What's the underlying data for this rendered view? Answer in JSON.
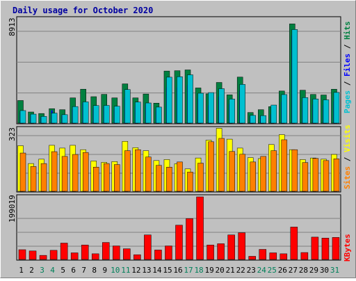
{
  "chart_data": [
    {
      "type": "bar",
      "title": "Daily usage for October 2020",
      "y_max_label": "8913",
      "ylim": [
        0,
        8913
      ],
      "legend": [
        {
          "name": "Pages",
          "color": "#00c0d0"
        },
        {
          "name": "Files",
          "color": "#0000ff"
        },
        {
          "name": "Hits",
          "color": "#008040"
        }
      ],
      "x": [
        "1",
        "2",
        "3",
        "4",
        "5",
        "6",
        "7",
        "8",
        "9",
        "10",
        "11",
        "12",
        "13",
        "14",
        "15",
        "16",
        "17",
        "18",
        "19",
        "20",
        "21",
        "22",
        "23",
        "24",
        "25",
        "26",
        "27",
        "28",
        "29",
        "30",
        "31"
      ],
      "weekend_days": [
        "3",
        "4",
        "10",
        "11",
        "17",
        "18",
        "24",
        "25",
        "31"
      ],
      "series": [
        {
          "name": "Hits",
          "color": "#008040",
          "values": [
            1959,
            964,
            832,
            1252,
            1164,
            2186,
            2938,
            2289,
            2491,
            2185,
            3399,
            2186,
            2521,
            1729,
            4509,
            4539,
            4607,
            3046,
            2537,
            3522,
            2448,
            3986,
            919,
            1164,
            1427,
            2780,
            8589,
            2849,
            2483,
            2436,
            2937
          ]
        },
        {
          "name": "Files",
          "color": "#0000ff",
          "values": [
            920,
            660,
            520,
            1100,
            680,
            1200,
            1750,
            1300,
            1450,
            1200,
            2250,
            1450,
            1600,
            1100,
            3100,
            3100,
            3300,
            2100,
            1550,
            2300,
            1650,
            2800,
            560,
            600,
            760,
            1850,
            7600,
            1900,
            1600,
            1550,
            1900
          ]
        },
        {
          "name": "Pages",
          "color": "#00c0d0",
          "values": [
            1087,
            779,
            582,
            866,
            732,
            1435,
            1841,
            1521,
            1533,
            1468,
            2907,
            1826,
            1746,
            1390,
            3980,
            4020,
            4183,
            2590,
            2644,
            2983,
            2085,
            3351,
            669,
            652,
            1564,
            2472,
            8104,
            2213,
            2093,
            2018,
            2657
          ]
        }
      ]
    },
    {
      "type": "bar",
      "y_max_label": "323",
      "ylim": [
        0,
        323
      ],
      "legend": [
        {
          "name": "Sites",
          "color": "#ff8000"
        },
        {
          "name": "Visits",
          "color": "#ffff00"
        }
      ],
      "x": [
        "1",
        "2",
        "3",
        "4",
        "5",
        "6",
        "7",
        "8",
        "9",
        "10",
        "11",
        "12",
        "13",
        "14",
        "15",
        "16",
        "17",
        "18",
        "19",
        "20",
        "21",
        "22",
        "23",
        "24",
        "25",
        "26",
        "27",
        "28",
        "29",
        "30",
        "31"
      ],
      "series": [
        {
          "name": "Visits",
          "color": "#ffff00",
          "values": [
            230,
            140,
            162,
            232,
            218,
            232,
            210,
            153,
            146,
            150,
            252,
            220,
            205,
            155,
            160,
            139,
            113,
            168,
            258,
            318,
            263,
            218,
            170,
            165,
            236,
            286,
            210,
            160,
            168,
            162,
            186
          ]
        },
        {
          "name": "Sites",
          "color": "#ff8000",
          "values": [
            193,
            125,
            140,
            200,
            176,
            186,
            196,
            122,
            140,
            135,
            205,
            210,
            173,
            131,
            122,
            148,
            97,
            142,
            250,
            267,
            201,
            187,
            148,
            176,
            205,
            260,
            210,
            145,
            166,
            155,
            164
          ]
        }
      ]
    },
    {
      "type": "bar",
      "y_max_label": "199019",
      "ylim": [
        0,
        199019
      ],
      "legend": [
        {
          "name": "KBytes",
          "color": "#ff0000"
        }
      ],
      "x": [
        "1",
        "2",
        "3",
        "4",
        "5",
        "6",
        "7",
        "8",
        "9",
        "10",
        "11",
        "12",
        "13",
        "14",
        "15",
        "16",
        "17",
        "18",
        "19",
        "20",
        "21",
        "22",
        "23",
        "24",
        "25",
        "26",
        "27",
        "28",
        "29",
        "30",
        "31"
      ],
      "series": [
        {
          "name": "KBytes",
          "color": "#ff0000",
          "values": [
            31000,
            27000,
            13000,
            29000,
            52000,
            21000,
            46000,
            18000,
            54000,
            43000,
            34000,
            15000,
            78000,
            30000,
            43000,
            109000,
            130000,
            199019,
            46000,
            50000,
            78000,
            85000,
            10000,
            32000,
            21000,
            18000,
            103000,
            22000,
            71000,
            68000,
            70000
          ]
        }
      ]
    }
  ]
}
